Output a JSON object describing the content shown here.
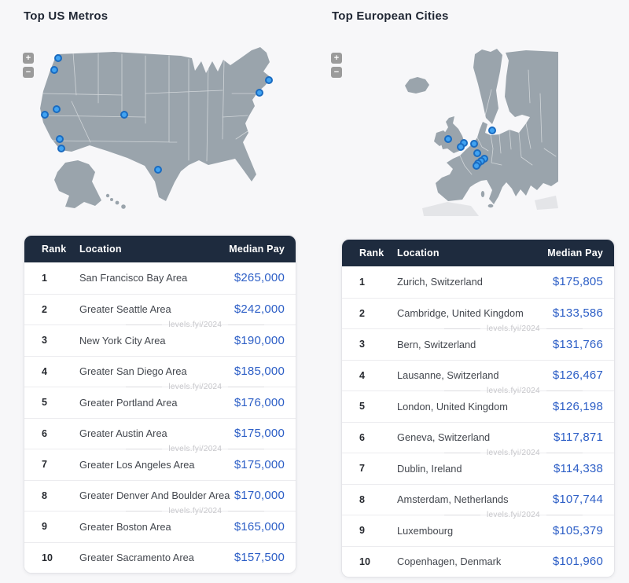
{
  "colors": {
    "page_bg": "#f7f7f9",
    "card_bg": "#ffffff",
    "header_bg": "#1e2b3e",
    "header_text": "#ffffff",
    "rank_text": "#25282e",
    "location_text": "#43474e",
    "pay_text": "#2c5ec6",
    "title_text": "#1f2633",
    "map_land": "#9aa4ac",
    "map_border": "#ffffff",
    "marker_fill": "#41a3f2",
    "marker_stroke": "#1a6bc0",
    "row_divider": "#ececef",
    "watermark_text": "#c6c6ca",
    "zoom_btn_bg": "#9b9b9b",
    "zoom_btn_text": "#ffffff"
  },
  "watermark": {
    "text": "levels.fyi/2024",
    "after_rows": [
      2,
      4,
      6,
      8
    ]
  },
  "map_controls": {
    "zoom_in": "+",
    "zoom_out": "−"
  },
  "panels": [
    {
      "title": "Top US Metros",
      "map": {
        "name": "us-map",
        "markers": [
          {
            "name": "seattle",
            "label": "Greater Seattle Area",
            "x": 13.2,
            "y": 6.5
          },
          {
            "name": "portland",
            "label": "Greater Portland Area",
            "x": 11.9,
            "y": 13.0
          },
          {
            "name": "sacramento",
            "label": "Greater Sacramento Area",
            "x": 12.7,
            "y": 34.8
          },
          {
            "name": "san-francisco",
            "label": "San Francisco Bay Area",
            "x": 8.6,
            "y": 37.8
          },
          {
            "name": "los-angeles",
            "label": "Greater Los Angeles Area",
            "x": 13.8,
            "y": 51.3
          },
          {
            "name": "san-diego",
            "label": "Greater San Diego Area",
            "x": 14.3,
            "y": 56.5
          },
          {
            "name": "denver",
            "label": "Greater Denver And Boulder Area",
            "x": 35.9,
            "y": 37.8
          },
          {
            "name": "austin",
            "label": "Greater Austin Area",
            "x": 47.6,
            "y": 68.3
          },
          {
            "name": "boston",
            "label": "Greater Boston Area",
            "x": 85.7,
            "y": 18.7
          },
          {
            "name": "new-york",
            "label": "New York City Area",
            "x": 82.4,
            "y": 25.7
          }
        ]
      },
      "table": {
        "headers": [
          "Rank",
          "Location",
          "Median Pay"
        ],
        "rows": [
          {
            "rank": "1",
            "location": "San Francisco Bay Area",
            "median_pay": "$265,000"
          },
          {
            "rank": "2",
            "location": "Greater Seattle Area",
            "median_pay": "$242,000"
          },
          {
            "rank": "3",
            "location": "New York City Area",
            "median_pay": "$190,000"
          },
          {
            "rank": "4",
            "location": "Greater San Diego Area",
            "median_pay": "$185,000"
          },
          {
            "rank": "5",
            "location": "Greater Portland Area",
            "median_pay": "$176,000"
          },
          {
            "rank": "6",
            "location": "Greater Austin Area",
            "median_pay": "$175,000"
          },
          {
            "rank": "7",
            "location": "Greater Los Angeles Area",
            "median_pay": "$175,000"
          },
          {
            "rank": "8",
            "location": "Greater Denver And Boulder Area",
            "median_pay": "$170,000"
          },
          {
            "rank": "9",
            "location": "Greater Boston Area",
            "median_pay": "$165,000"
          },
          {
            "rank": "10",
            "location": "Greater Sacramento Area",
            "median_pay": "$157,500"
          }
        ]
      }
    },
    {
      "title": "Top European Cities",
      "map": {
        "name": "europe-map",
        "markers": [
          {
            "name": "dublin",
            "label": "Dublin, Ireland",
            "x": 41.4,
            "y": 50.2
          },
          {
            "name": "copenhagen",
            "label": "Copenhagen, Denmark",
            "x": 56.5,
            "y": 45.5
          },
          {
            "name": "cambridge",
            "label": "Cambridge, United Kingdom",
            "x": 46.8,
            "y": 52.3
          },
          {
            "name": "london",
            "label": "London, United Kingdom",
            "x": 45.7,
            "y": 54.5
          },
          {
            "name": "amsterdam",
            "label": "Amsterdam, Netherlands",
            "x": 50.3,
            "y": 52.8
          },
          {
            "name": "luxembourg",
            "label": "Luxembourg",
            "x": 51.4,
            "y": 57.9
          },
          {
            "name": "zurich",
            "label": "Zurich, Switzerland",
            "x": 53.8,
            "y": 60.9
          },
          {
            "name": "bern",
            "label": "Bern, Switzerland",
            "x": 52.7,
            "y": 62.1
          },
          {
            "name": "lausanne",
            "label": "Lausanne, Switzerland",
            "x": 51.6,
            "y": 63.4
          },
          {
            "name": "geneva",
            "label": "Geneva, Switzerland",
            "x": 51.1,
            "y": 64.7
          }
        ]
      },
      "table": {
        "headers": [
          "Rank",
          "Location",
          "Median Pay"
        ],
        "rows": [
          {
            "rank": "1",
            "location": "Zurich, Switzerland",
            "median_pay": "$175,805"
          },
          {
            "rank": "2",
            "location": "Cambridge, United Kingdom",
            "median_pay": "$133,586"
          },
          {
            "rank": "3",
            "location": "Bern, Switzerland",
            "median_pay": "$131,766"
          },
          {
            "rank": "4",
            "location": "Lausanne, Switzerland",
            "median_pay": "$126,467"
          },
          {
            "rank": "5",
            "location": "London, United Kingdom",
            "median_pay": "$126,198"
          },
          {
            "rank": "6",
            "location": "Geneva, Switzerland",
            "median_pay": "$117,871"
          },
          {
            "rank": "7",
            "location": "Dublin, Ireland",
            "median_pay": "$114,338"
          },
          {
            "rank": "8",
            "location": "Amsterdam, Netherlands",
            "median_pay": "$107,744"
          },
          {
            "rank": "9",
            "location": "Luxembourg",
            "median_pay": "$105,379"
          },
          {
            "rank": "10",
            "location": "Copenhagen, Denmark",
            "median_pay": "$101,960"
          }
        ]
      }
    }
  ],
  "chart_data": [
    {
      "type": "table",
      "title": "Top US Metros",
      "columns": [
        "Rank",
        "Location",
        "Median Pay"
      ],
      "rows": [
        [
          1,
          "San Francisco Bay Area",
          265000
        ],
        [
          2,
          "Greater Seattle Area",
          242000
        ],
        [
          3,
          "New York City Area",
          190000
        ],
        [
          4,
          "Greater San Diego Area",
          185000
        ],
        [
          5,
          "Greater Portland Area",
          176000
        ],
        [
          6,
          "Greater Austin Area",
          175000
        ],
        [
          7,
          "Greater Los Angeles Area",
          175000
        ],
        [
          8,
          "Greater Denver And Boulder Area",
          170000
        ],
        [
          9,
          "Greater Boston Area",
          165000
        ],
        [
          10,
          "Greater Sacramento Area",
          157500
        ]
      ]
    },
    {
      "type": "table",
      "title": "Top European Cities",
      "columns": [
        "Rank",
        "Location",
        "Median Pay"
      ],
      "rows": [
        [
          1,
          "Zurich, Switzerland",
          175805
        ],
        [
          2,
          "Cambridge, United Kingdom",
          133586
        ],
        [
          3,
          "Bern, Switzerland",
          131766
        ],
        [
          4,
          "Lausanne, Switzerland",
          126467
        ],
        [
          5,
          "London, United Kingdom",
          126198
        ],
        [
          6,
          "Geneva, Switzerland",
          117871
        ],
        [
          7,
          "Dublin, Ireland",
          114338
        ],
        [
          8,
          "Amsterdam, Netherlands",
          107744
        ],
        [
          9,
          "Luxembourg",
          105379
        ],
        [
          10,
          "Copenhagen, Denmark",
          101960
        ]
      ]
    }
  ]
}
